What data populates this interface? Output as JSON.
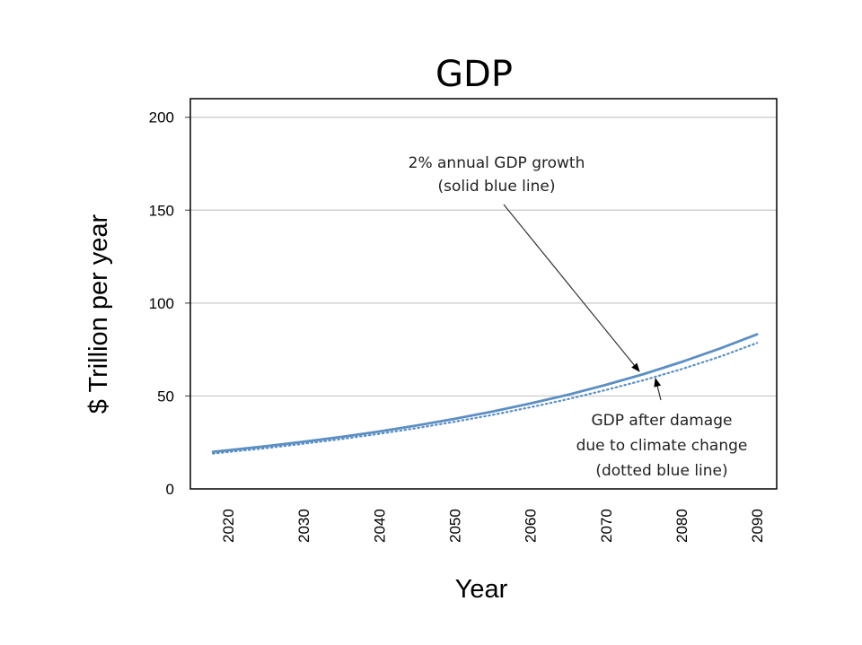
{
  "chart_data": {
    "type": "line",
    "title": "GDP",
    "xlabel": "Year",
    "ylabel": "$ Trillion per year",
    "xlim": [
      2015,
      2092.6
    ],
    "ylim": [
      0,
      210
    ],
    "x_ticks": [
      "2020",
      "2030",
      "2040",
      "2050",
      "2060",
      "2070",
      "2080",
      "2090"
    ],
    "y_ticks": [
      "0",
      "50",
      "100",
      "150",
      "200"
    ],
    "grid": "horizontal",
    "legend": "none",
    "x": [
      2018,
      2020,
      2025,
      2030,
      2035,
      2040,
      2045,
      2050,
      2055,
      2060,
      2065,
      2070,
      2075,
      2080,
      2085,
      2090
    ],
    "series": [
      {
        "name": "2% annual GDP growth",
        "style": "solid",
        "color": "#5b8fc4",
        "values": [
          20.0,
          20.8,
          23.0,
          25.4,
          28.0,
          30.9,
          34.2,
          37.7,
          41.6,
          46.0,
          50.7,
          56.0,
          61.8,
          68.3,
          75.4,
          83.2
        ]
      },
      {
        "name": "GDP after damage due to climate change",
        "style": "dotted",
        "color": "#5b8fc4",
        "values": [
          20.0,
          20.8,
          22.9,
          25.3,
          27.8,
          30.6,
          33.7,
          37.1,
          40.8,
          44.9,
          49.3,
          54.2,
          59.5,
          65.4,
          72.0,
          79.5
        ]
      }
    ],
    "annotations": [
      {
        "lines": [
          "2% annual GDP growth",
          "(solid blue line)"
        ],
        "points_to": "solid series near 2076"
      },
      {
        "lines": [
          "GDP after damage",
          "due to climate change",
          "(dotted blue line)"
        ],
        "points_to": "dotted series near 2077"
      }
    ]
  }
}
